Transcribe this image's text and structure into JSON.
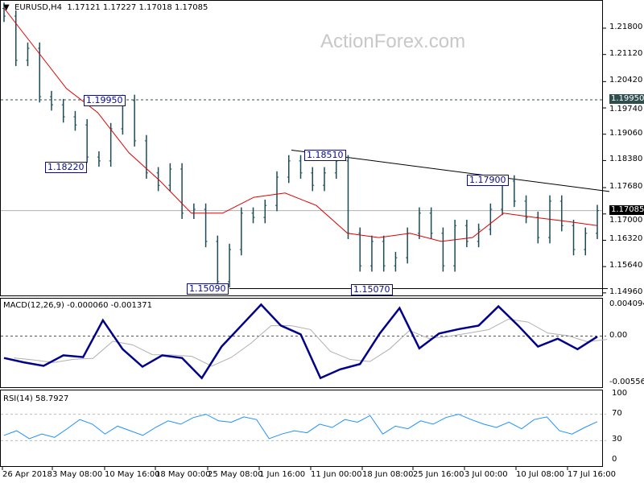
{
  "header": {
    "symbol": "EURUSD,H4",
    "ohlc": "1.17121 1.17227 1.17018 1.17085"
  },
  "watermark": "ActionForex.com",
  "colors": {
    "bars": "#1b4b57",
    "ma": "#e00000",
    "macd": "#00008b",
    "signal": "#b0b0b0",
    "rsi": "#1e90ff",
    "last_price_bg": "#000000",
    "level_bg": "#2f4f4f"
  },
  "chart_data": [
    {
      "type": "candlestick",
      "title": "EURUSD,H4",
      "yaxis_ticks": [
        "1.21800",
        "1.21120",
        "1.20420",
        "1.19740",
        "1.19060",
        "1.18380",
        "1.17680",
        "1.17000",
        "1.16320",
        "1.15640",
        "1.14960"
      ],
      "ylim": [
        1.1496,
        1.218
      ],
      "x_ticks": [
        "26 Apr 2018",
        "3 May 08:00",
        "10 May 16:00",
        "18 May 00:00",
        "25 May 08:00",
        "1 Jun 16:00",
        "11 Jun 00:00",
        "18 Jun 08:00",
        "25 Jun 16:00",
        "3 Jul 00:00",
        "10 Jul 08:00",
        "17 Jul 16:00"
      ],
      "close": [
        1.2211,
        1.2097,
        1.2128,
        1.2003,
        1.1982,
        1.1951,
        1.193,
        1.1847,
        1.1837,
        1.192,
        1.1993,
        1.1889,
        1.1806,
        1.1774,
        1.1816,
        1.1702,
        1.1712,
        1.1629,
        1.1525,
        1.1608,
        1.1702,
        1.1691,
        1.1722,
        1.1795,
        1.1837,
        1.1806,
        1.1774,
        1.1806,
        1.1837,
        1.165,
        1.1566,
        1.1629,
        1.1566,
        1.1587,
        1.165,
        1.1702,
        1.165,
        1.1566,
        1.167,
        1.1629,
        1.166,
        1.1712,
        1.1785,
        1.1733,
        1.1691,
        1.1639,
        1.1733,
        1.167,
        1.1608,
        1.165,
        1.17085
      ],
      "moving_average": [
        1.2232,
        1.2128,
        1.2024,
        1.1962,
        1.1858,
        1.1785,
        1.1702,
        1.1702,
        1.1743,
        1.1754,
        1.1722,
        1.165,
        1.1639,
        1.165,
        1.1629,
        1.1639,
        1.1702,
        1.1691,
        1.1681,
        1.167
      ],
      "last_price": "1.17085",
      "level_price": "1.19950",
      "annotations": [
        "1.19950",
        "1.18220",
        "1.18510",
        "1.17900",
        "1.15090",
        "1.15070"
      ],
      "trendline": {
        "from": 1.1865,
        "to": 1.1758
      },
      "support": 1.1507
    },
    {
      "type": "line",
      "title": "MACD(12,26,9) -0.000060 -0.001371",
      "yaxis_ticks": [
        "0.004094",
        "0.00",
        "-0.005568"
      ],
      "ylim": [
        -0.005568,
        0.004094
      ],
      "macd": [
        -0.0025,
        -0.003,
        -0.0034,
        -0.0022,
        -0.0024,
        0.0018,
        -0.0015,
        -0.0035,
        -0.0022,
        -0.0025,
        -0.0048,
        -0.0012,
        0.0012,
        0.0036,
        0.0012,
        0.0002,
        -0.0048,
        -0.0038,
        -0.0032,
        0.0003,
        0.0032,
        -0.0014,
        0.0003,
        0.0008,
        0.0012,
        0.0034,
        0.0012,
        -0.0012,
        -0.0003,
        -0.0015,
        -6e-05
      ]
    },
    {
      "type": "line",
      "title": "RSI(14) 58.7927",
      "yaxis_ticks": [
        "100",
        "70",
        "30",
        "0"
      ],
      "ylim": [
        0,
        100
      ],
      "rsi": [
        38,
        45,
        33,
        40,
        35,
        48,
        62,
        55,
        40,
        52,
        45,
        38,
        50,
        60,
        55,
        65,
        70,
        60,
        58,
        66,
        62,
        33,
        40,
        45,
        42,
        55,
        50,
        62,
        58,
        68,
        40,
        52,
        48,
        60,
        55,
        65,
        70,
        62,
        55,
        50,
        58,
        48,
        62,
        66,
        45,
        40,
        50,
        58.79
      ]
    }
  ]
}
